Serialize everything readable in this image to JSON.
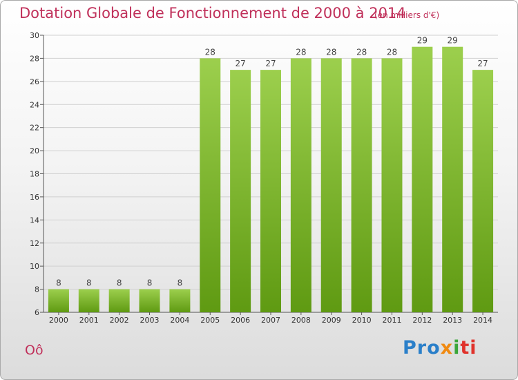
{
  "header": {
    "title": "Dotation Globale de Fonctionnement de 2000 à 2014",
    "unit": "(en milliers d'€)"
  },
  "footer": {
    "place": "Oô",
    "logo": "Proxiti"
  },
  "colors": {
    "title": "#c0305a",
    "bar_top": "#9ccf4d",
    "bar_bottom": "#5f9a12"
  },
  "chart_data": {
    "type": "bar",
    "categories": [
      "2000",
      "2001",
      "2002",
      "2003",
      "2004",
      "2005",
      "2006",
      "2007",
      "2008",
      "2009",
      "2010",
      "2011",
      "2012",
      "2013",
      "2014"
    ],
    "values": [
      8,
      8,
      8,
      8,
      8,
      28,
      27,
      27,
      28,
      28,
      28,
      28,
      29,
      29,
      27
    ],
    "ylim": [
      6,
      30
    ],
    "yticks": [
      6,
      8,
      10,
      12,
      14,
      16,
      18,
      20,
      22,
      24,
      26,
      28,
      30
    ],
    "grid": true,
    "legend": "none"
  }
}
